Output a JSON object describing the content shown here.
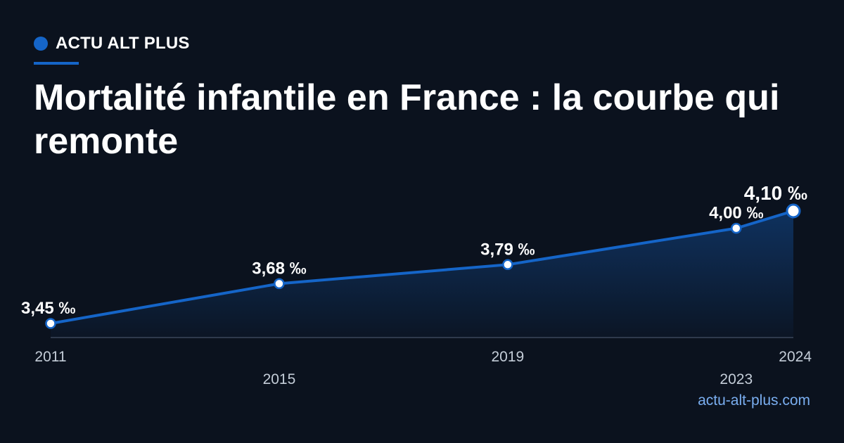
{
  "brand": {
    "name": "ACTU ALT PLUS",
    "color": "#1565c8"
  },
  "title": "Mortalité infantile en France : la courbe qui remonte",
  "source": "actu-alt-plus.com",
  "colors": {
    "background": "#0b121e",
    "line": "#1565c8",
    "text": "#ffffff",
    "axis_label": "#c4cdd8",
    "source": "#7aaef0"
  },
  "chart_data": {
    "type": "area",
    "x": [
      2011,
      2015,
      2019,
      2023,
      2024
    ],
    "y": [
      3.45,
      3.68,
      3.79,
      4.0,
      4.1
    ],
    "tick_labels": [
      "2011",
      "2015",
      "2019",
      "2023",
      "2024"
    ],
    "data_labels": [
      "3,45 ‰",
      "3,68 ‰",
      "3,79 ‰",
      "4,00 ‰",
      "4,10 ‰"
    ],
    "title": "",
    "xlabel": "",
    "ylabel": "",
    "grid": false,
    "legend": "none"
  }
}
